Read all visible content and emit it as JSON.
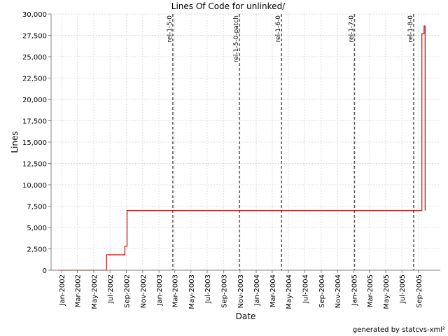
{
  "chart_data": {
    "type": "line",
    "title": "Lines Of Code for unlinked/",
    "xlabel": "Date",
    "ylabel": "Lines",
    "ylim": [
      0,
      30000
    ],
    "xlim": [
      "2001-11-22",
      "2005-11-22"
    ],
    "grid": true,
    "line_color": "#cc0000",
    "y_ticks": [
      "0",
      "2,500",
      "5,000",
      "7,500",
      "10,000",
      "12,500",
      "15,000",
      "17,500",
      "20,000",
      "22,500",
      "25,000",
      "27,500",
      "30,000"
    ],
    "x_ticks": [
      {
        "label": "Jan-2002",
        "date": "2002-01-01"
      },
      {
        "label": "Mar-2002",
        "date": "2002-03-01"
      },
      {
        "label": "May-2002",
        "date": "2002-05-01"
      },
      {
        "label": "Jul-2002",
        "date": "2002-07-01"
      },
      {
        "label": "Sep-2002",
        "date": "2002-09-01"
      },
      {
        "label": "Nov-2002",
        "date": "2002-11-01"
      },
      {
        "label": "Jan-2003",
        "date": "2003-01-01"
      },
      {
        "label": "Mar-2003",
        "date": "2003-03-01"
      },
      {
        "label": "May-2003",
        "date": "2003-05-01"
      },
      {
        "label": "Jul-2003",
        "date": "2003-07-01"
      },
      {
        "label": "Sep-2003",
        "date": "2003-09-01"
      },
      {
        "label": "Nov-2003",
        "date": "2003-11-01"
      },
      {
        "label": "Jan-2004",
        "date": "2004-01-01"
      },
      {
        "label": "Mar-2004",
        "date": "2004-03-01"
      },
      {
        "label": "May-2004",
        "date": "2004-05-01"
      },
      {
        "label": "Jul-2004",
        "date": "2004-07-01"
      },
      {
        "label": "Sep-2004",
        "date": "2004-09-01"
      },
      {
        "label": "Nov-2004",
        "date": "2004-11-01"
      },
      {
        "label": "Jan-2005",
        "date": "2005-01-01"
      },
      {
        "label": "Mar-2005",
        "date": "2005-03-01"
      },
      {
        "label": "May-2005",
        "date": "2005-05-01"
      },
      {
        "label": "Jul-2005",
        "date": "2005-07-01"
      },
      {
        "label": "Sep-2005",
        "date": "2005-09-01"
      }
    ],
    "tags": [
      {
        "label": "rel-1-5-0",
        "date": "2003-02-22"
      },
      {
        "label": "rel-1-5-0-patch",
        "date": "2003-10-30"
      },
      {
        "label": "rel-1-6-0",
        "date": "2004-04-05"
      },
      {
        "label": "rel-1-7-0",
        "date": "2005-01-04"
      },
      {
        "label": "rel-1-8-0",
        "date": "2005-08-14"
      }
    ],
    "series": [
      {
        "points": [
          [
            "2001-12-18",
            0
          ],
          [
            "2002-06-18",
            0
          ],
          [
            "2002-06-18",
            1800
          ],
          [
            "2002-08-26",
            1800
          ],
          [
            "2002-08-26",
            2800
          ],
          [
            "2002-09-03",
            2800
          ],
          [
            "2002-09-03",
            7000
          ],
          [
            "2005-09-14",
            7000
          ],
          [
            "2005-09-14",
            27700
          ],
          [
            "2005-09-22",
            27700
          ],
          [
            "2005-09-22",
            28600
          ],
          [
            "2005-09-26",
            28600
          ],
          [
            "2005-09-26",
            7000
          ]
        ]
      }
    ]
  },
  "footer": "generated by statcvs-xml²"
}
